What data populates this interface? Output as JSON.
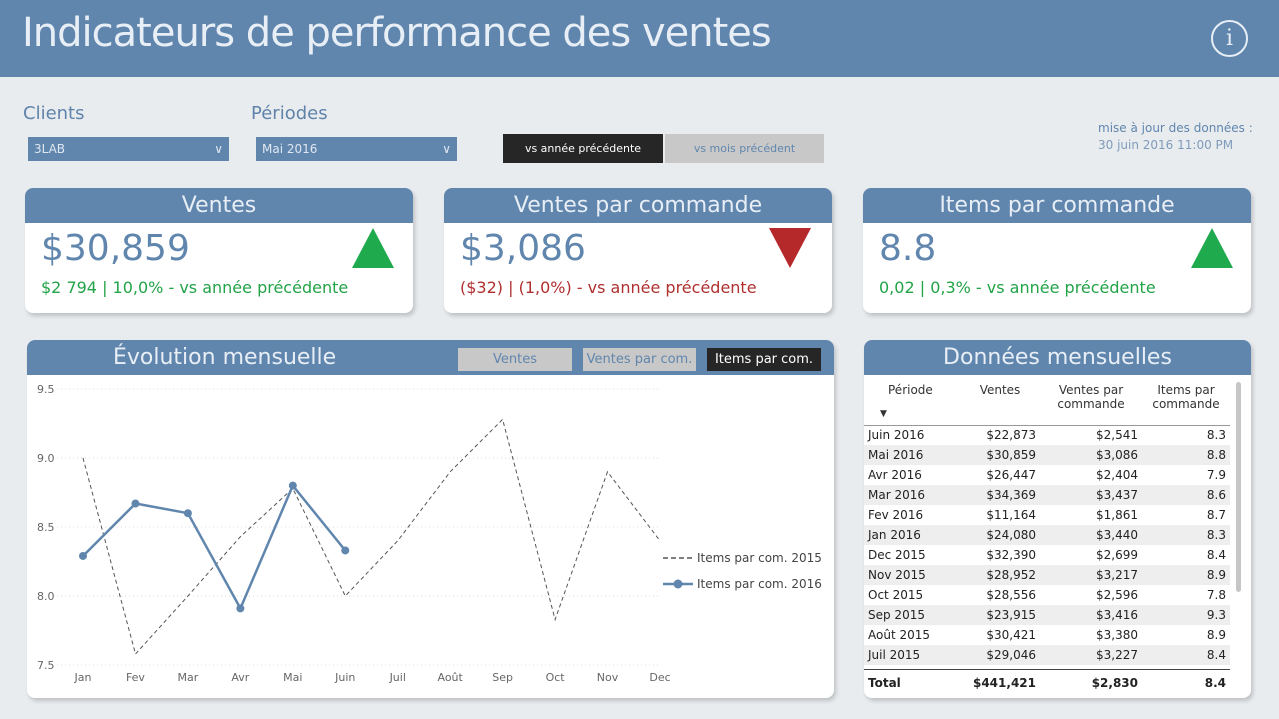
{
  "header": {
    "title": "Indicateurs de performance des ventes",
    "info_icon": "info-icon"
  },
  "filters": {
    "clients": {
      "label": "Clients",
      "value": "3LAB"
    },
    "periodes": {
      "label": "Périodes",
      "value": "Mai 2016"
    }
  },
  "comparison": {
    "year_label": "vs année précédente",
    "month_label": "vs mois précédent",
    "selected": "year"
  },
  "update": {
    "label": "mise à jour des données :",
    "value": "30 juin 2016 11:00 PM"
  },
  "colors": {
    "accent": "#6086ae",
    "up": "#1faa4e",
    "down": "#b5292b",
    "dark": "#262626"
  },
  "kpis": {
    "ventes": {
      "title": "Ventes",
      "value": "$30,859",
      "delta": "$2 794 | 10,0% - vs année précédente",
      "trend": "up"
    },
    "ventes_par_commande": {
      "title": "Ventes par commande",
      "value": "$3,086",
      "delta": "($32) | (1,0%) - vs année précédente",
      "trend": "down"
    },
    "items_par_commande": {
      "title": "Items par commande",
      "value": "8.8",
      "delta": "0,02 | 0,3% - vs année précédente",
      "trend": "up"
    }
  },
  "evolution": {
    "title": "Évolution mensuelle",
    "tabs": [
      "Ventes",
      "Ventes par com.",
      "Items par com."
    ],
    "selected_tab": 2
  },
  "chart_data": {
    "type": "line",
    "title": "Évolution mensuelle",
    "categories": [
      "Jan",
      "Fev",
      "Mar",
      "Avr",
      "Mai",
      "Juin",
      "Juil",
      "Août",
      "Sep",
      "Oct",
      "Nov",
      "Dec"
    ],
    "yticks": [
      "9.5",
      "9.0",
      "8.5",
      "8.0",
      "7.5"
    ],
    "ylim": [
      7.5,
      9.5
    ],
    "grid": true,
    "legend": "right",
    "series": [
      {
        "name": "Items par com. 2015",
        "style": "dashed",
        "color": "#555555",
        "values": [
          9.0,
          7.58,
          8.0,
          8.43,
          8.78,
          8.0,
          8.4,
          8.9,
          9.28,
          7.83,
          8.9,
          8.4
        ]
      },
      {
        "name": "Items par com. 2016",
        "style": "solid",
        "color": "#6086ae",
        "values": [
          8.29,
          8.67,
          8.6,
          7.91,
          8.8,
          8.33,
          null,
          null,
          null,
          null,
          null,
          null
        ]
      }
    ]
  },
  "monthly": {
    "title": "Données mensuelles",
    "columns": [
      "Période",
      "Ventes",
      "Ventes par commande",
      "Items par commande"
    ],
    "rows": [
      [
        "Juin 2016",
        "$22,873",
        "$2,541",
        "8.3"
      ],
      [
        "Mai 2016",
        "$30,859",
        "$3,086",
        "8.8"
      ],
      [
        "Avr 2016",
        "$26,447",
        "$2,404",
        "7.9"
      ],
      [
        "Mar 2016",
        "$34,369",
        "$3,437",
        "8.6"
      ],
      [
        "Fev 2016",
        "$11,164",
        "$1,861",
        "8.7"
      ],
      [
        "Jan 2016",
        "$24,080",
        "$3,440",
        "8.3"
      ],
      [
        "Dec 2015",
        "$32,390",
        "$2,699",
        "8.4"
      ],
      [
        "Nov 2015",
        "$28,952",
        "$3,217",
        "8.9"
      ],
      [
        "Oct 2015",
        "$28,556",
        "$2,596",
        "7.8"
      ],
      [
        "Sep 2015",
        "$23,915",
        "$3,416",
        "9.3"
      ],
      [
        "Août 2015",
        "$30,421",
        "$3,380",
        "8.9"
      ],
      [
        "Juil 2015",
        "$29,046",
        "$3,227",
        "8.4"
      ]
    ],
    "total": [
      "Total",
      "$441,421",
      "$2,830",
      "8.4"
    ]
  }
}
